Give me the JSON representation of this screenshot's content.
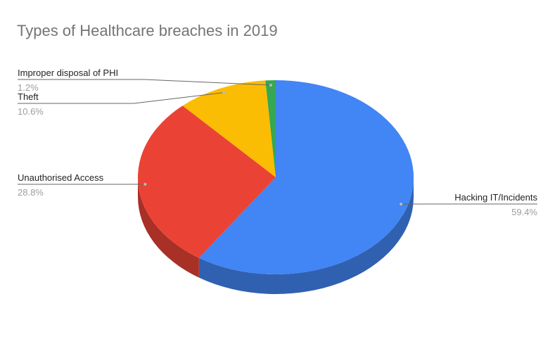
{
  "chart_data": {
    "type": "pie3d",
    "title": "Types of Healthcare breaches in 2019",
    "categories": [
      "Hacking IT/Incidents",
      "Unauthorised Access",
      "Theft",
      "Improper disposal of PHI"
    ],
    "values": [
      59.4,
      28.8,
      10.6,
      1.2
    ],
    "value_labels": [
      "59.4%",
      "28.8%",
      "10.6%",
      "1.2%"
    ],
    "colors": [
      "#4285f4",
      "#ea4335",
      "#fbbc04",
      "#34a853"
    ]
  }
}
